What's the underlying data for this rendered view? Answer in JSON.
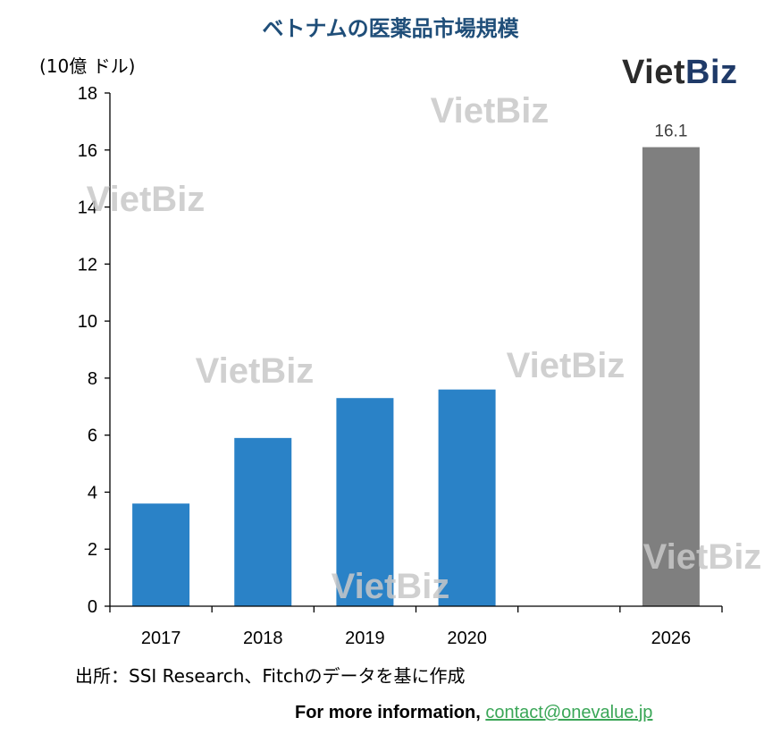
{
  "title": "ベトナムの医薬品市場規模",
  "unit": "(10億 ドル)",
  "logo": {
    "part1": "Viet",
    "part2": "Biz"
  },
  "watermark_text": "VietBiz",
  "source": "出所：SSI Research、Fitchのデータを基に作成",
  "footer": {
    "label": "For more information, ",
    "link": "contact@onevalue.jp"
  },
  "colors": {
    "bar": "#2a82c7",
    "forecast_bar": "#7f7f7f",
    "title": "#1f4e79",
    "link": "#3aa657"
  },
  "chart_data": {
    "type": "bar",
    "title": "ベトナムの医薬品市場規模",
    "ylabel": "(10億 ドル)",
    "xlabel": "",
    "ylim": [
      0,
      18
    ],
    "yticks": [
      "0",
      "2",
      "4",
      "6",
      "8",
      "10",
      "12",
      "14",
      "16",
      "18"
    ],
    "categories": [
      "2017",
      "2018",
      "2019",
      "2020",
      "",
      "2026"
    ],
    "values": [
      3.6,
      5.9,
      7.3,
      7.6,
      null,
      16.1
    ],
    "data_labels": [
      null,
      null,
      null,
      null,
      null,
      "16.1"
    ],
    "grid": false,
    "legend": "none"
  }
}
